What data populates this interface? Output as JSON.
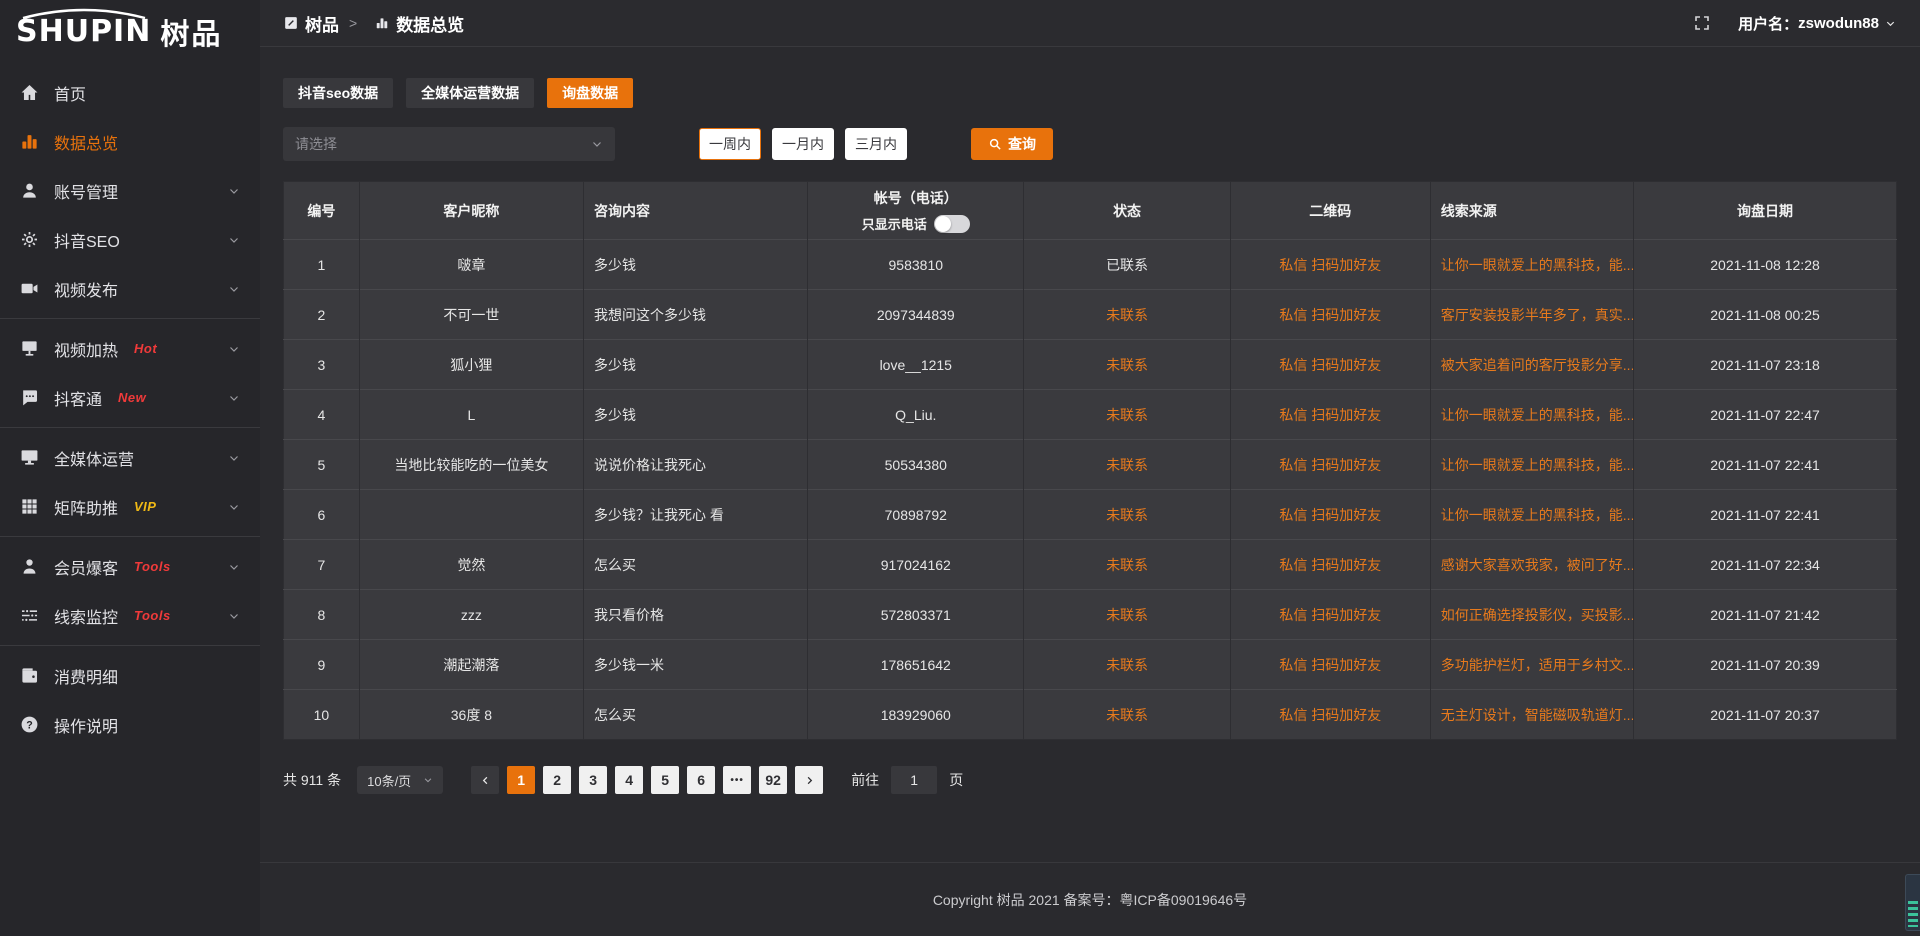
{
  "app": {
    "logo_en": "SHUPIN",
    "logo_cn": "树品"
  },
  "topbar": {
    "breadcrumb": {
      "root": "树品",
      "separator": ">",
      "current": "数据总览"
    },
    "username_label": "用户名：",
    "username": "zswodun88"
  },
  "sidebar": {
    "items": [
      {
        "id": "home",
        "icon": "home-icon",
        "label": "首页"
      },
      {
        "id": "data-overview",
        "icon": "bar-chart-icon",
        "label": "数据总览",
        "active": true
      },
      {
        "id": "account-manage",
        "icon": "user-icon",
        "label": "账号管理",
        "chevron": true
      },
      {
        "id": "douyin-seo",
        "icon": "gear-icon",
        "label": "抖音SEO",
        "chevron": true
      },
      {
        "id": "video-publish",
        "icon": "video-icon",
        "label": "视频发布",
        "chevron": true
      },
      {
        "divider": true
      },
      {
        "id": "video-heat",
        "icon": "screen-icon",
        "label": "视频加热",
        "badge": "Hot",
        "badge_color": "#F03A3A",
        "chevron": true
      },
      {
        "id": "doukhetong",
        "icon": "chat-icon",
        "label": "抖客通",
        "badge": "New",
        "badge_color": "#F03A3A",
        "chevron": true
      },
      {
        "divider": true
      },
      {
        "id": "media-operation",
        "icon": "monitor-icon",
        "label": "全媒体运营",
        "chevron": true
      },
      {
        "id": "matrix-boost",
        "icon": "grid-icon",
        "label": "矩阵助推",
        "badge": "VIP",
        "badge_color": "#F0B915",
        "chevron": true
      },
      {
        "divider": true
      },
      {
        "id": "member-baoke",
        "icon": "member-icon",
        "label": "会员爆客",
        "badge": "Tools",
        "badge_color": "#F03A3A",
        "chevron": true
      },
      {
        "id": "leads-monitor",
        "icon": "sliders-icon",
        "label": "线索监控",
        "badge": "Tools",
        "badge_color": "#F03A3A",
        "chevron": true
      },
      {
        "divider": true
      },
      {
        "id": "expense-detail",
        "icon": "wallet-icon",
        "label": "消费明细"
      },
      {
        "id": "help",
        "icon": "question-icon",
        "label": "操作说明"
      }
    ]
  },
  "tabs": [
    {
      "id": "douyin-seo-data",
      "label": "抖音seo数据"
    },
    {
      "id": "media-operation-data",
      "label": "全媒体运营数据"
    },
    {
      "id": "inquiry-data",
      "label": "询盘数据",
      "active": true
    }
  ],
  "filters": {
    "select_placeholder": "请选择",
    "ranges": [
      {
        "label": "一周内",
        "selected": true
      },
      {
        "label": "一月内"
      },
      {
        "label": "三月内"
      }
    ],
    "query_label": "查询"
  },
  "table": {
    "columns": [
      {
        "label": "编号",
        "align": "center"
      },
      {
        "label": "客户昵称",
        "align": "center"
      },
      {
        "label": "咨询内容",
        "align": "left"
      },
      {
        "label": "帐号（电话）",
        "align": "center",
        "toggle_label": "只显示电话"
      },
      {
        "label": "状态",
        "align": "center"
      },
      {
        "label": "二维码",
        "align": "center"
      },
      {
        "label": "线索来源",
        "align": "left"
      },
      {
        "label": "询盘日期",
        "align": "center"
      }
    ],
    "rows": [
      {
        "no": "1",
        "nickname": "啵章",
        "content": "多少钱",
        "account": "9583810",
        "status": "已联系",
        "contacted": true,
        "qrcode": "私信 扫码加好友",
        "source": "让你一眼就爱上的黑科技，能...",
        "date": "2021-11-08 12:28"
      },
      {
        "no": "2",
        "nickname": "不可一世",
        "content": "我想问这个多少钱",
        "account": "2097344839",
        "status": "未联系",
        "contacted": false,
        "qrcode": "私信 扫码加好友",
        "source": "客厅安装投影半年多了，真实...",
        "date": "2021-11-08 00:25"
      },
      {
        "no": "3",
        "nickname": "狐小狸",
        "content": "多少钱",
        "account": "love__1215",
        "status": "未联系",
        "contacted": false,
        "qrcode": "私信 扫码加好友",
        "source": "被大家追着问的客厅投影分享...",
        "date": "2021-11-07 23:18"
      },
      {
        "no": "4",
        "nickname": "L",
        "content": "多少钱",
        "account": "Q_Liu.",
        "status": "未联系",
        "contacted": false,
        "qrcode": "私信 扫码加好友",
        "source": "让你一眼就爱上的黑科技，能...",
        "date": "2021-11-07 22:47"
      },
      {
        "no": "5",
        "nickname": "当地比较能吃的一位美女",
        "content": "说说价格让我死心",
        "account": "50534380",
        "status": "未联系",
        "contacted": false,
        "qrcode": "私信 扫码加好友",
        "source": "让你一眼就爱上的黑科技，能...",
        "date": "2021-11-07 22:41"
      },
      {
        "no": "6",
        "nickname": "",
        "content": "多少钱？让我死心 看",
        "account": "70898792",
        "status": "未联系",
        "contacted": false,
        "qrcode": "私信 扫码加好友",
        "source": "让你一眼就爱上的黑科技，能...",
        "date": "2021-11-07 22:41"
      },
      {
        "no": "7",
        "nickname": "觉然",
        "content": "怎么买",
        "account": "917024162",
        "status": "未联系",
        "contacted": false,
        "qrcode": "私信 扫码加好友",
        "source": "感谢大家喜欢我家，被问了好...",
        "date": "2021-11-07 22:34"
      },
      {
        "no": "8",
        "nickname": "zzz",
        "content": "我只看价格",
        "account": "572803371",
        "status": "未联系",
        "contacted": false,
        "qrcode": "私信 扫码加好友",
        "source": "如何正确选择投影仪，买投影...",
        "date": "2021-11-07 21:42"
      },
      {
        "no": "9",
        "nickname": "潮起潮落",
        "content": "多少钱一米",
        "account": "178651642",
        "status": "未联系",
        "contacted": false,
        "qrcode": "私信 扫码加好友",
        "source": "多功能护栏灯，适用于乡村文...",
        "date": "2021-11-07 20:39"
      },
      {
        "no": "10",
        "nickname": "36度 8",
        "content": "怎么买",
        "account": "183929060",
        "status": "未联系",
        "contacted": false,
        "qrcode": "私信 扫码加好友",
        "source": "无主灯设计，智能磁吸轨道灯...",
        "date": "2021-11-07 20:37"
      }
    ]
  },
  "pagination": {
    "total_label": "共 911 条",
    "page_size_label": "10条/页",
    "pages": [
      "1",
      "2",
      "3",
      "4",
      "5",
      "6",
      "•••",
      "92"
    ],
    "active_page_index": 0,
    "goto_label": "前往",
    "goto_value": "1",
    "goto_suffix": "页"
  },
  "footer": {
    "copyright": "Copyright 树品 2021 备案号：粤ICP备09019646号"
  },
  "colors": {
    "accent": "#E8720C",
    "link_orange": "#E87A1C",
    "badge_red": "#F03A3A",
    "badge_yellow": "#F0B915"
  }
}
